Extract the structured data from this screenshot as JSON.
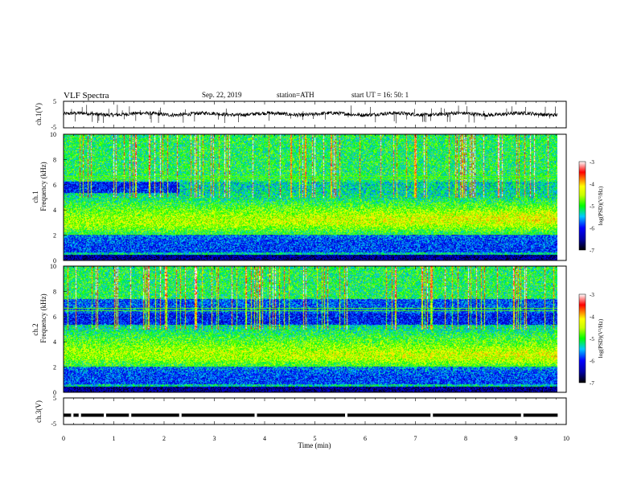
{
  "header": {
    "title": "VLF  Spectra",
    "date": "Sep. 22, 2019",
    "station": "station=ATH",
    "start": "start  UT  =    16: 50: 1"
  },
  "chart_data": {
    "type": "heatmap",
    "xlabel": "Time  (min)",
    "x_ticks": [
      "0",
      "1",
      "2",
      "3",
      "4",
      "5",
      "6",
      "7",
      "8",
      "9",
      "10"
    ],
    "xlim": [
      0,
      10
    ],
    "data_end_min": 9.83,
    "panels": [
      {
        "id": "ch1_waveform",
        "type": "line",
        "ylabel": "ch.1(V)",
        "y_ticks": [
          "5",
          "-5"
        ],
        "ylim": [
          -5,
          5
        ],
        "baseline_v": 0.2,
        "noise_v": 0.3
      },
      {
        "id": "ch1_spectrogram",
        "type": "heatmap",
        "ylabel_channel": "ch.1",
        "ylabel": "Frequency  (kHz)",
        "y_ticks": [
          "0",
          "2",
          "4",
          "6",
          "8",
          "10"
        ],
        "ylim": [
          0,
          10
        ],
        "colorbar": {
          "label": "log(PSD)(V²/Hz)",
          "ticks": [
            "-3",
            "-4",
            "-5",
            "-6",
            "-7"
          ],
          "range": [
            -7,
            -3
          ]
        },
        "features": {
          "band_center_khz": [
            3.0,
            3.2
          ],
          "dark_region_khz": [
            5.4,
            6.3
          ],
          "dark_region_end_min": 2.3
        }
      },
      {
        "id": "ch2_spectrogram",
        "type": "heatmap",
        "ylabel_channel": "ch.2",
        "ylabel": "Frequency  (kHz)",
        "y_ticks": [
          "0",
          "2",
          "4",
          "6",
          "8",
          "10"
        ],
        "ylim": [
          0,
          10
        ],
        "colorbar": {
          "label": "log(PSD)(V²/Hz)",
          "ticks": [
            "-3",
            "-4",
            "-5",
            "-6",
            "-7"
          ],
          "range": [
            -7,
            -3
          ]
        },
        "features": {
          "band_center_khz": [
            3.0,
            2.9
          ],
          "dark_region_khz": [
            5.4,
            7.4
          ],
          "dark_region_end_min": 9.83
        }
      },
      {
        "id": "ch3_waveform",
        "type": "line",
        "ylabel": "ch.3(V)",
        "y_ticks": [
          "5",
          "-5"
        ],
        "ylim": [
          -5,
          5
        ],
        "level_v": -1.5
      }
    ]
  }
}
